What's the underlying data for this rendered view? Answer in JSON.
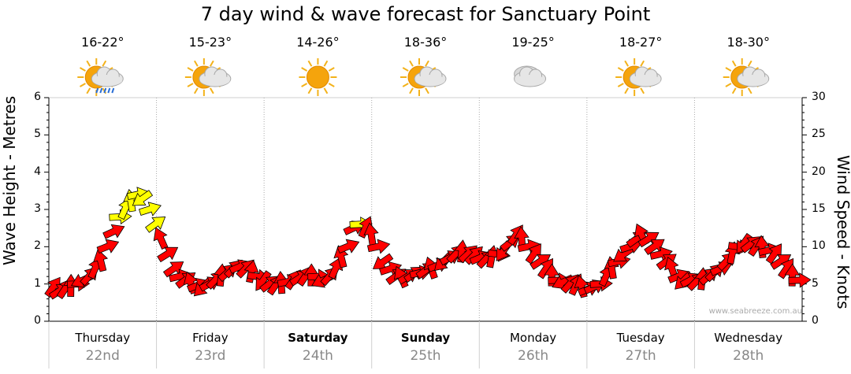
{
  "title": "7 day wind & wave forecast for Sanctuary Point",
  "watermark": "www.seabreeze.com.au",
  "days": [
    {
      "name": "Thursday",
      "date": "22nd",
      "temp": "16-22°",
      "icon": "sun-cloud-rain-icon",
      "bold": false
    },
    {
      "name": "Friday",
      "date": "23rd",
      "temp": "15-23°",
      "icon": "sun-cloud-icon",
      "bold": false
    },
    {
      "name": "Saturday",
      "date": "24th",
      "temp": "14-26°",
      "icon": "sun-icon",
      "bold": true
    },
    {
      "name": "Sunday",
      "date": "25th",
      "temp": "18-36°",
      "icon": "sun-cloud-icon",
      "bold": true
    },
    {
      "name": "Monday",
      "date": "26th",
      "temp": "19-25°",
      "icon": "cloud-icon",
      "bold": false
    },
    {
      "name": "Tuesday",
      "date": "27th",
      "temp": "18-27°",
      "icon": "sun-cloud-icon",
      "bold": false
    },
    {
      "name": "Wednesday",
      "date": "28th",
      "temp": "18-30°",
      "icon": "sun-cloud-icon",
      "bold": false
    }
  ],
  "chart_data": {
    "type": "line",
    "ylabel_left": "Wave Height - Metres",
    "ylabel_right": "Wind Speed - Knots",
    "yticks_left": [
      "0",
      "1",
      "2",
      "3",
      "4",
      "5",
      "6"
    ],
    "yticks_right": [
      "0",
      "5",
      "10",
      "15",
      "20",
      "25",
      "30"
    ],
    "ylim_left": [
      0,
      6
    ],
    "ylim_right": [
      0,
      30
    ],
    "grid": true,
    "colors": {
      "wind_normal": "#ff0000",
      "wind_strong": "#ffff00",
      "outline": "#000000",
      "grid": "#aaaaaa"
    },
    "wind_knots": [
      4.5,
      4,
      4.3,
      4.6,
      5,
      5.5,
      6,
      7,
      8,
      10,
      12,
      14,
      15,
      16,
      17,
      16.5,
      15,
      13,
      11,
      9,
      7,
      6,
      5.5,
      5,
      4.8,
      4.6,
      5,
      5.5,
      6,
      6.5,
      7,
      7.3,
      7,
      6.5,
      6,
      5.5,
      5,
      4.8,
      5,
      5.3,
      5.5,
      5.8,
      6,
      6,
      6,
      5.5,
      6,
      7,
      8.5,
      10,
      12.5,
      13,
      12.5,
      11.5,
      10,
      8,
      7,
      6,
      5.8,
      6,
      6.3,
      6.5,
      6.8,
      7,
      7.5,
      8,
      8.5,
      9,
      9.2,
      9,
      8.8,
      8.5,
      8.3,
      8.5,
      9,
      9.5,
      10.5,
      11.5,
      11,
      10,
      9,
      8,
      7,
      6,
      5.5,
      5.3,
      5,
      4.8,
      4.5,
      4.3,
      4.6,
      5,
      6,
      7,
      8,
      9,
      10,
      11,
      11.5,
      11,
      10,
      9,
      8,
      7,
      6,
      5.5,
      5.5,
      5.3,
      5.5,
      6,
      6.5,
      7,
      8,
      9,
      10,
      10.5,
      10.3,
      10,
      9.8,
      9.5,
      9,
      8,
      7,
      6,
      5.5
    ]
  }
}
